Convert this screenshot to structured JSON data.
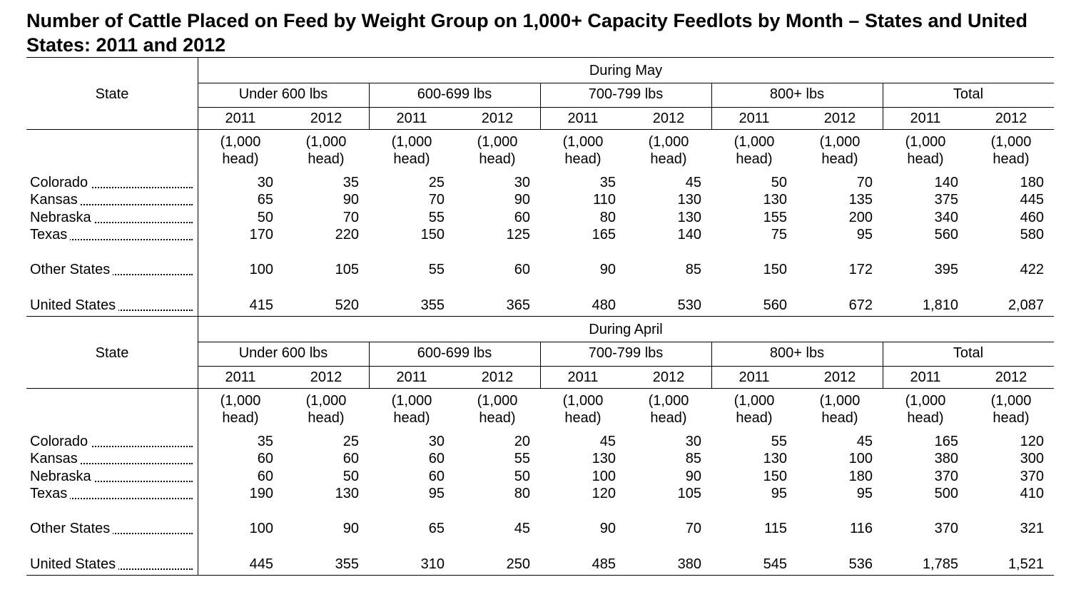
{
  "title": "Number of Cattle Placed on Feed by Weight Group on 1,000+ Capacity Feedlots by Month – States and United States: 2011 and 2012",
  "stub_header": "State",
  "groups": [
    "Under 600 lbs",
    "600-699 lbs",
    "700-799 lbs",
    "800+ lbs",
    "Total"
  ],
  "years": [
    "2011",
    "2012"
  ],
  "unit_line1": "(1,000",
  "unit_line2": "head)",
  "sections": [
    {
      "label": "During May",
      "rows": [
        {
          "state": "Colorado",
          "values": [
            "30",
            "35",
            "25",
            "30",
            "35",
            "45",
            "50",
            "70",
            "140",
            "180"
          ]
        },
        {
          "state": "Kansas",
          "values": [
            "65",
            "90",
            "70",
            "90",
            "110",
            "130",
            "130",
            "135",
            "375",
            "445"
          ]
        },
        {
          "state": "Nebraska",
          "values": [
            "50",
            "70",
            "55",
            "60",
            "80",
            "130",
            "155",
            "200",
            "340",
            "460"
          ]
        },
        {
          "state": "Texas",
          "values": [
            "170",
            "220",
            "150",
            "125",
            "165",
            "140",
            "75",
            "95",
            "560",
            "580"
          ]
        },
        {
          "state": "Other States",
          "values": [
            "100",
            "105",
            "55",
            "60",
            "90",
            "85",
            "150",
            "172",
            "395",
            "422"
          ]
        },
        {
          "state": "United States",
          "values": [
            "415",
            "520",
            "355",
            "365",
            "480",
            "530",
            "560",
            "672",
            "1,810",
            "2,087"
          ]
        }
      ]
    },
    {
      "label": "During April",
      "rows": [
        {
          "state": "Colorado",
          "values": [
            "35",
            "25",
            "30",
            "20",
            "45",
            "30",
            "55",
            "45",
            "165",
            "120"
          ]
        },
        {
          "state": "Kansas",
          "values": [
            "60",
            "60",
            "60",
            "55",
            "130",
            "85",
            "130",
            "100",
            "380",
            "300"
          ]
        },
        {
          "state": "Nebraska",
          "values": [
            "60",
            "50",
            "60",
            "50",
            "100",
            "90",
            "150",
            "180",
            "370",
            "370"
          ]
        },
        {
          "state": "Texas",
          "values": [
            "190",
            "130",
            "95",
            "80",
            "120",
            "105",
            "95",
            "95",
            "500",
            "410"
          ]
        },
        {
          "state": "Other States",
          "values": [
            "100",
            "90",
            "65",
            "45",
            "90",
            "70",
            "115",
            "116",
            "370",
            "321"
          ]
        },
        {
          "state": "United States",
          "values": [
            "445",
            "355",
            "310",
            "250",
            "485",
            "380",
            "545",
            "536",
            "1,785",
            "1,521"
          ]
        }
      ]
    }
  ]
}
